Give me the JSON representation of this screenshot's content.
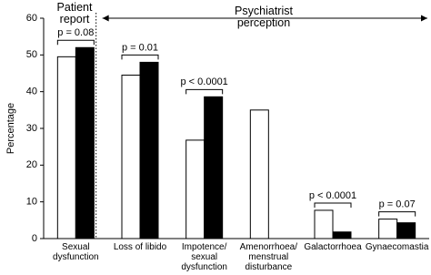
{
  "chart_data": {
    "type": "bar",
    "header_left": "Patient report",
    "header_right": "Psychiatrist perception",
    "y_label": "Percentage",
    "categories": [
      "Sexual dysfunction",
      "Loss of libido",
      "Impotence/ sexual dysfunction",
      "Amenorrhoea/ menstrual disturbance",
      "Galactorrhoea",
      "Gynaecomastia"
    ],
    "series": [
      {
        "color": "#ffffff",
        "values": [
          49.5,
          44.5,
          26.8,
          35,
          7.7,
          5.3
        ]
      },
      {
        "color": "#000000",
        "values": [
          52,
          48,
          38.6,
          null,
          1.8,
          4.3
        ]
      }
    ],
    "p_values": [
      "p = 0.08",
      "p = 0.01",
      "p < 0.0001",
      null,
      "p < 0.0001",
      "p = 0.07"
    ],
    "ylim": [
      0,
      60
    ],
    "yticks": [
      0,
      10,
      20,
      30,
      40,
      50,
      60
    ]
  }
}
